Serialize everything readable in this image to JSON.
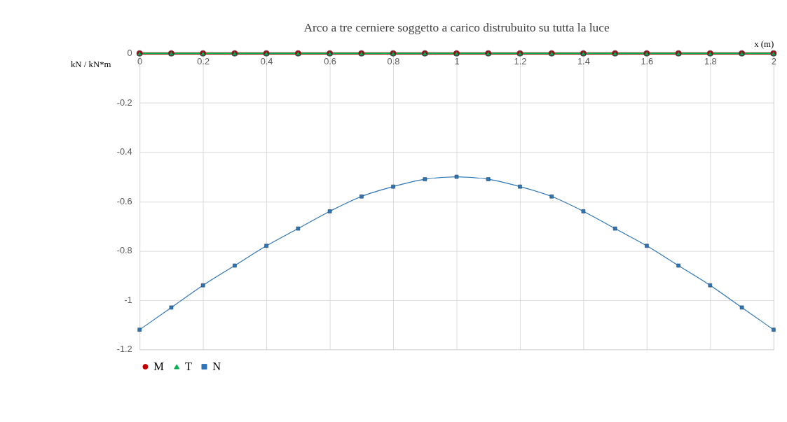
{
  "chart_data": {
    "type": "line",
    "title": "Arco a tre cerniere soggetto a carico distrubuito su tutta la luce",
    "xlabel": "x (m)",
    "ylabel": "kN / kN*m",
    "x": [
      0,
      0.1,
      0.2,
      0.3,
      0.4,
      0.5,
      0.6,
      0.7,
      0.8,
      0.9,
      1,
      1.1,
      1.2,
      1.3,
      1.4,
      1.5,
      1.6,
      1.7,
      1.8,
      1.9,
      2
    ],
    "series": [
      {
        "name": "M",
        "color": "#c00000",
        "marker": "circle",
        "values": [
          0,
          0,
          0,
          0,
          0,
          0,
          0,
          0,
          0,
          0,
          0,
          0,
          0,
          0,
          0,
          0,
          0,
          0,
          0,
          0,
          0
        ]
      },
      {
        "name": "T",
        "color": "#00b050",
        "marker": "triangle",
        "values": [
          0,
          0,
          0,
          0,
          0,
          0,
          0,
          0,
          0,
          0,
          0,
          0,
          0,
          0,
          0,
          0,
          0,
          0,
          0,
          0,
          0
        ]
      },
      {
        "name": "N",
        "color": "#2e75b6",
        "marker": "square",
        "values": [
          -1.12,
          -1.03,
          -0.94,
          -0.86,
          -0.78,
          -0.71,
          -0.64,
          -0.58,
          -0.54,
          -0.51,
          -0.5,
          -0.51,
          -0.54,
          -0.58,
          -0.64,
          -0.71,
          -0.78,
          -0.86,
          -0.94,
          -1.03,
          -1.12
        ]
      }
    ],
    "xlim": [
      0,
      2
    ],
    "xticks": [
      0,
      0.2,
      0.4,
      0.6,
      0.8,
      1,
      1.2,
      1.4,
      1.6,
      1.8,
      2
    ],
    "ylim": [
      -1.2,
      0
    ],
    "yticks": [
      -1.2,
      -1,
      -0.8,
      -0.6,
      -0.4,
      -0.2,
      0
    ],
    "grid": true,
    "legend": "bottom",
    "line_style": "solid"
  }
}
